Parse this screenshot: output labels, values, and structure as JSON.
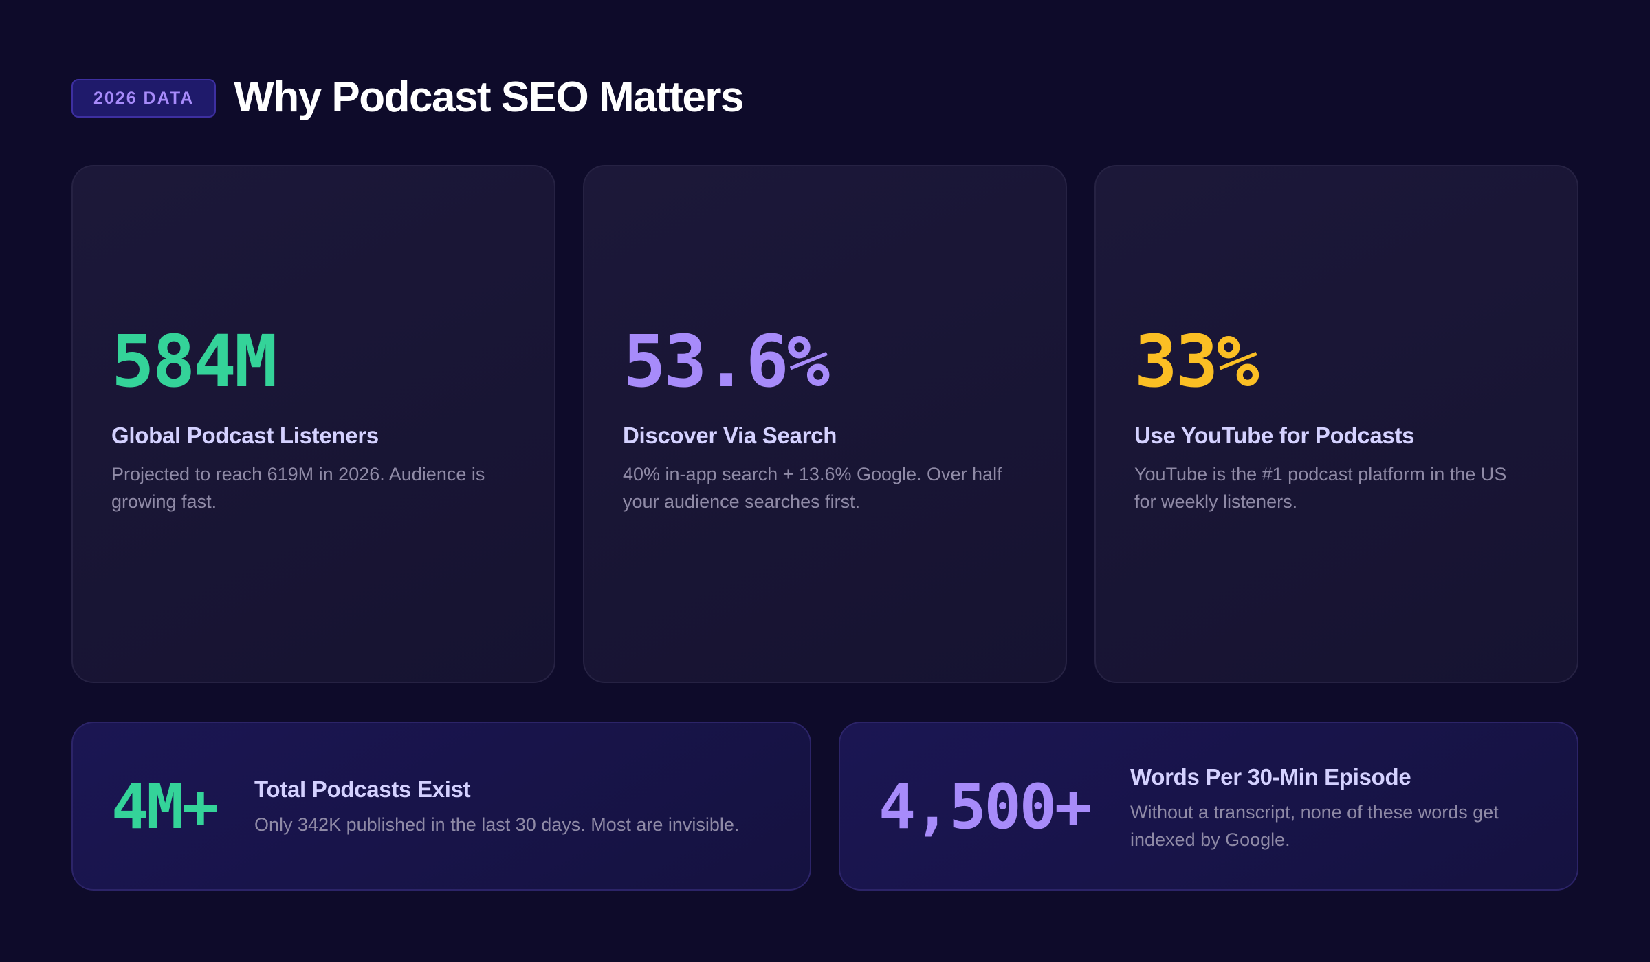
{
  "header": {
    "badge": "2026 DATA",
    "title": "Why Podcast SEO Matters"
  },
  "cards": [
    {
      "stat": "584M",
      "label": "Global Podcast Listeners",
      "description": "Projected to reach 619M in 2026. Audience is growing fast.",
      "accent": "#34d399"
    },
    {
      "stat": "53.6%",
      "label": "Discover Via Search",
      "description": "40% in-app search + 13.6% Google. Over half your audience searches first.",
      "accent": "#a78bfa"
    },
    {
      "stat": "33%",
      "label": "Use YouTube for Podcasts",
      "description": "YouTube is the #1 podcast platform in the US for weekly listeners.",
      "accent": "#fbbf24"
    }
  ],
  "wide_cards": [
    {
      "stat": "4M+",
      "label": "Total Podcasts Exist",
      "description": "Only 342K published in the last 30 days. Most are invisible.",
      "accent": "#34d399"
    },
    {
      "stat": "4,500+",
      "label": "Words Per 30-Min Episode",
      "description": "Without a transcript, none of these words get indexed by Google.",
      "accent": "#a78bfa"
    }
  ]
}
